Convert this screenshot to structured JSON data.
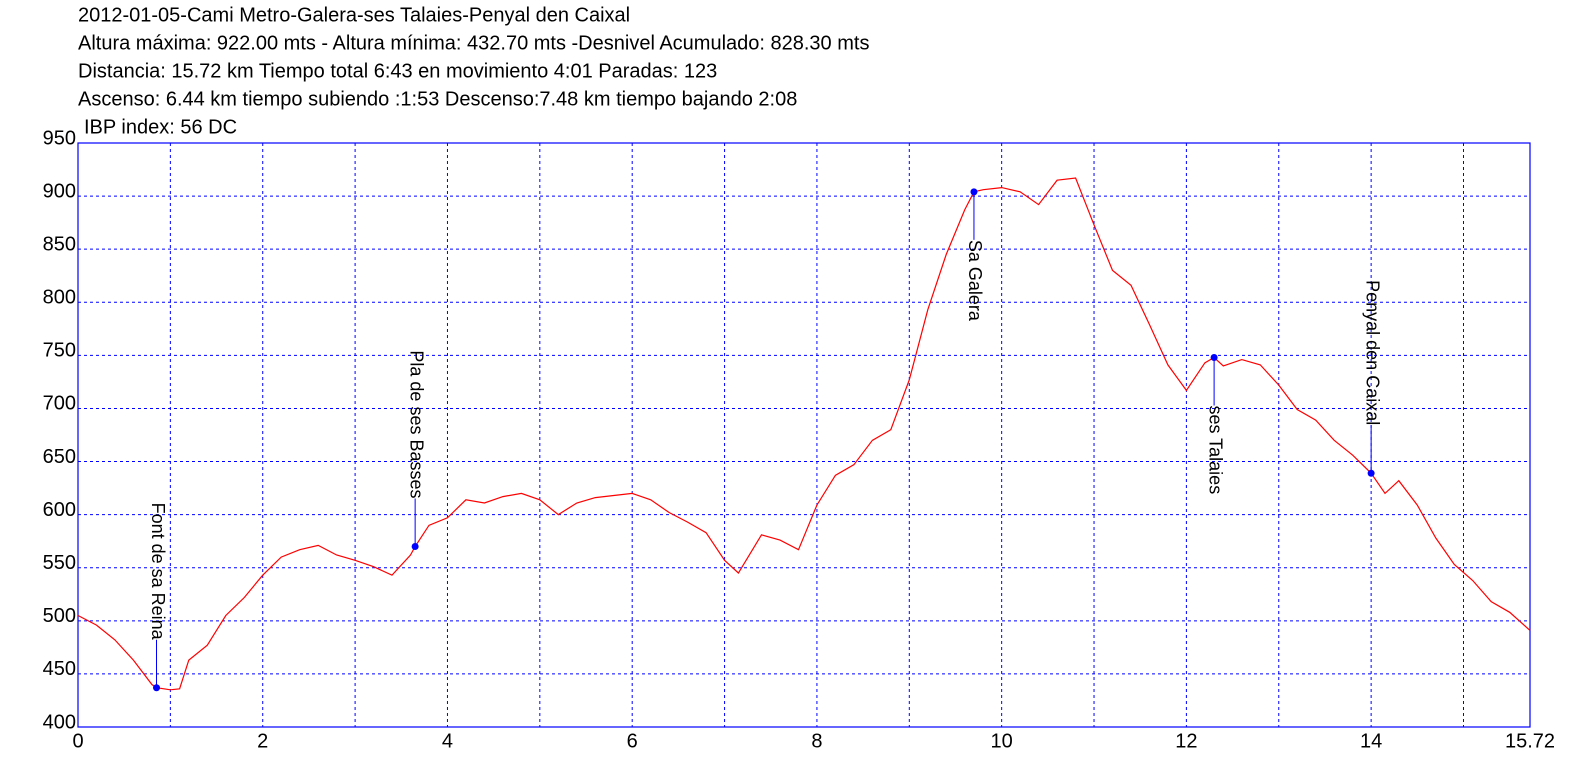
{
  "chart_data": {
    "type": "line",
    "title": "2012-01-05-Cami Metro-Galera-ses Talaies-Penyal den Caixal",
    "info_lines": [
      "Altura máxima: 922.00 mts - Altura mínima: 432.70 mts -Desnivel Acumulado: 828.30 mts",
      "Distancia: 15.72 km  Tiempo total 6:43  en movimiento 4:01 Paradas: 123",
      "Ascenso: 6.44 km  tiempo subiendo :1:53  Descenso:7.48 km tiempo bajando 2:08",
      "IBP index: 56 DC"
    ],
    "xlim": [
      0,
      15.72
    ],
    "xticks": [
      0,
      2,
      4,
      6,
      8,
      10,
      12,
      14,
      15.72
    ],
    "x_minor_grid": [
      1,
      3,
      5,
      7,
      9,
      11,
      13,
      15
    ],
    "ylim": [
      400,
      950
    ],
    "yticks": [
      400,
      450,
      500,
      550,
      600,
      650,
      700,
      750,
      800,
      850,
      900,
      950
    ],
    "grid": true,
    "grid_color": "#0000ff",
    "axis_color": "#0000ff",
    "series": [
      {
        "color": "#ff0000",
        "x": [
          0,
          0.2,
          0.4,
          0.6,
          0.8,
          0.85,
          1.0,
          1.1,
          1.2,
          1.4,
          1.6,
          1.8,
          2.0,
          2.2,
          2.4,
          2.6,
          2.8,
          3.0,
          3.2,
          3.4,
          3.6,
          3.65,
          3.8,
          4.0,
          4.2,
          4.4,
          4.6,
          4.8,
          5.0,
          5.2,
          5.4,
          5.6,
          5.8,
          6.0,
          6.2,
          6.4,
          6.6,
          6.8,
          7.0,
          7.15,
          7.4,
          7.6,
          7.8,
          8.0,
          8.2,
          8.4,
          8.6,
          8.8,
          9.0,
          9.2,
          9.4,
          9.6,
          9.7,
          9.8,
          10.0,
          10.2,
          10.4,
          10.6,
          10.8,
          11.0,
          11.2,
          11.4,
          11.6,
          11.8,
          12.0,
          12.2,
          12.3,
          12.4,
          12.6,
          12.8,
          13.0,
          13.2,
          13.4,
          13.6,
          13.8,
          14.0,
          14.15,
          14.3,
          14.5,
          14.7,
          14.9,
          15.1,
          15.3,
          15.5,
          15.72
        ],
        "values": [
          505,
          496,
          482,
          463,
          440,
          437,
          435,
          436,
          463,
          477,
          505,
          522,
          543,
          560,
          567,
          571,
          562,
          557,
          551,
          543,
          562,
          570,
          590,
          597,
          614,
          611,
          617,
          620,
          614,
          600,
          611,
          616,
          618,
          620,
          614,
          602,
          593,
          583,
          557,
          545,
          581,
          576,
          567,
          609,
          637,
          647,
          670,
          680,
          727,
          793,
          845,
          887,
          904,
          906,
          908,
          904,
          892,
          915,
          917,
          873,
          830,
          816,
          779,
          741,
          717,
          743,
          748,
          740,
          746,
          741,
          722,
          699,
          689,
          670,
          656,
          639,
          620,
          632,
          609,
          578,
          553,
          538,
          518,
          508,
          491
        ]
      }
    ],
    "waypoints": [
      {
        "name": "Font de sa Reina",
        "x": 0.85,
        "y": 437,
        "label_side": "up"
      },
      {
        "name": "Pla de ses Basses",
        "x": 3.65,
        "y": 570,
        "label_side": "up"
      },
      {
        "name": "Sa Galera",
        "x": 9.7,
        "y": 904,
        "label_side": "down"
      },
      {
        "name": "ses Talaies",
        "x": 12.3,
        "y": 748,
        "label_side": "down"
      },
      {
        "name": "Penyal den Caixal",
        "x": 14.0,
        "y": 639,
        "label_side": "up"
      }
    ],
    "waypoint_color": "#0000ff"
  }
}
